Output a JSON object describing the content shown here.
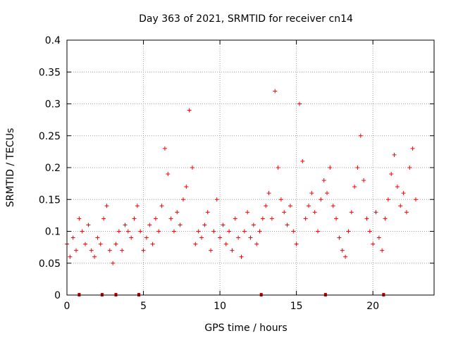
{
  "chart_data": {
    "type": "scatter",
    "title": "Day 363 of 2021, SRMTID for receiver cn14",
    "xlabel": "GPS time / hours",
    "ylabel": "SRMTID / TECUs",
    "xlim": [
      0,
      24
    ],
    "ylim": [
      0,
      0.4
    ],
    "xticks": [
      0,
      5,
      10,
      15,
      20
    ],
    "xtick_labels": [
      "0",
      "5",
      "10",
      "15",
      "20"
    ],
    "yticks": [
      0,
      0.05,
      0.1,
      0.15,
      0.2,
      0.25,
      0.3,
      0.35,
      0.4
    ],
    "ytick_labels": [
      "0",
      "0.05",
      "0.1",
      "0.15",
      "0.2",
      "0.25",
      "0.3",
      "0.35",
      "0.4"
    ],
    "grid": true,
    "marker": "+",
    "color": "#ff0000",
    "baseline_markers_x": [
      0.8,
      2.3,
      3.2,
      4.7,
      12.7,
      16.9,
      20.7
    ],
    "series": [
      {
        "name": "SRMTID",
        "x": [
          0.0,
          0.2,
          0.4,
          0.6,
          0.8,
          1.0,
          1.2,
          1.4,
          1.6,
          1.8,
          2.0,
          2.2,
          2.4,
          2.6,
          2.8,
          3.0,
          3.2,
          3.4,
          3.6,
          3.8,
          4.0,
          4.2,
          4.4,
          4.6,
          4.8,
          5.0,
          5.2,
          5.4,
          5.6,
          5.8,
          6.0,
          6.2,
          6.4,
          6.6,
          6.8,
          7.0,
          7.2,
          7.4,
          7.6,
          7.8,
          8.0,
          8.2,
          8.4,
          8.6,
          8.8,
          9.0,
          9.2,
          9.4,
          9.6,
          9.8,
          10.0,
          10.2,
          10.4,
          10.6,
          10.8,
          11.0,
          11.2,
          11.4,
          11.6,
          11.8,
          12.0,
          12.2,
          12.4,
          12.6,
          12.8,
          13.0,
          13.2,
          13.4,
          13.6,
          13.8,
          14.0,
          14.2,
          14.4,
          14.6,
          14.8,
          15.0,
          15.2,
          15.4,
          15.6,
          15.8,
          16.0,
          16.2,
          16.4,
          16.6,
          16.8,
          17.0,
          17.2,
          17.4,
          17.6,
          17.8,
          18.0,
          18.2,
          18.4,
          18.6,
          18.8,
          19.0,
          19.2,
          19.4,
          19.6,
          19.8,
          20.0,
          20.2,
          20.4,
          20.6,
          20.8,
          21.0,
          21.2,
          21.4,
          21.6,
          21.8,
          22.0,
          22.2,
          22.4,
          22.6,
          22.8
        ],
        "y": [
          0.08,
          0.06,
          0.09,
          0.07,
          0.12,
          0.1,
          0.08,
          0.11,
          0.07,
          0.06,
          0.09,
          0.08,
          0.12,
          0.14,
          0.07,
          0.05,
          0.08,
          0.1,
          0.07,
          0.11,
          0.1,
          0.09,
          0.12,
          0.14,
          0.1,
          0.07,
          0.09,
          0.11,
          0.08,
          0.12,
          0.1,
          0.14,
          0.23,
          0.19,
          0.12,
          0.1,
          0.13,
          0.11,
          0.15,
          0.17,
          0.29,
          0.2,
          0.08,
          0.1,
          0.09,
          0.11,
          0.13,
          0.07,
          0.1,
          0.15,
          0.09,
          0.11,
          0.08,
          0.1,
          0.07,
          0.12,
          0.09,
          0.06,
          0.1,
          0.13,
          0.09,
          0.11,
          0.08,
          0.1,
          0.12,
          0.14,
          0.16,
          0.12,
          0.32,
          0.2,
          0.15,
          0.13,
          0.11,
          0.14,
          0.1,
          0.08,
          0.3,
          0.21,
          0.12,
          0.14,
          0.16,
          0.13,
          0.1,
          0.15,
          0.18,
          0.16,
          0.2,
          0.14,
          0.12,
          0.09,
          0.07,
          0.06,
          0.1,
          0.13,
          0.17,
          0.2,
          0.25,
          0.18,
          0.12,
          0.1,
          0.08,
          0.13,
          0.09,
          0.07,
          0.12,
          0.15,
          0.19,
          0.22,
          0.17,
          0.14,
          0.16,
          0.13,
          0.2,
          0.23,
          0.15
        ]
      }
    ]
  }
}
